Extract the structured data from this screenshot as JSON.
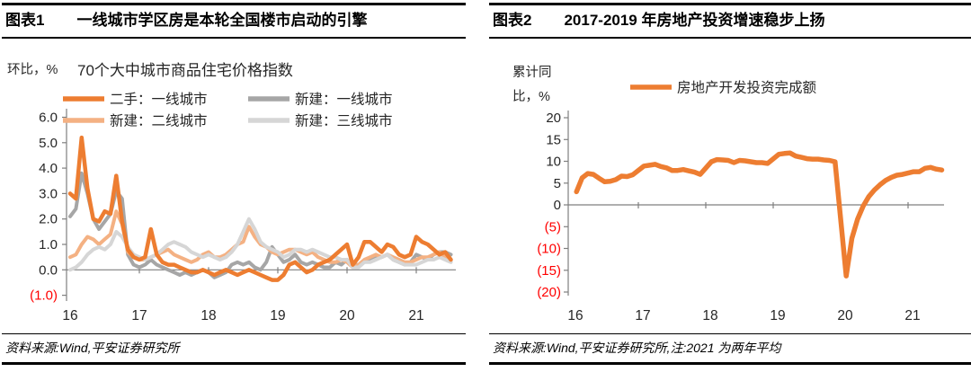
{
  "colors": {
    "accent_orange": "#ED7D31",
    "light_orange": "#F4B183",
    "gray": "#A6A6A6",
    "light_gray": "#D6D6D6",
    "axis": "#7F7F7F",
    "text": "#262626",
    "negative_tick": "#FF0000"
  },
  "panels": [
    {
      "header": {
        "label": "图表1",
        "title": "一线城市学区房是本轮全国楼市启动的引擎"
      },
      "footer": {
        "source": "资料来源:Wind,平安证券研究所"
      },
      "chart_data": {
        "type": "line",
        "title": "70个大中城市商品住宅价格指数",
        "ylabel": "环比，%",
        "xlim": [
          16,
          21.75
        ],
        "ylim": [
          -1.0,
          6.0
        ],
        "x_start": 16,
        "x_step_months": 1,
        "grid": false,
        "legend_position": "top",
        "y_ticks": [
          6.0,
          5.0,
          4.0,
          3.0,
          2.0,
          1.0,
          0.0,
          -1.0
        ],
        "y_tick_labels": [
          "6.0",
          "5.0",
          "4.0",
          "3.0",
          "2.0",
          "1.0",
          "0.0",
          "(1.0)"
        ],
        "x_tick_labels": [
          "16",
          "17",
          "18",
          "19",
          "20",
          "21"
        ],
        "series": [
          {
            "name": "二手：一线城市",
            "color": "#ED7D31",
            "values": [
              3.0,
              2.8,
              5.2,
              3.2,
              2.0,
              1.9,
              2.3,
              2.2,
              3.7,
              1.9,
              0.8,
              0.5,
              0.4,
              0.5,
              1.6,
              0.6,
              0.3,
              0.2,
              0.2,
              0.1,
              0.0,
              -0.1,
              -0.1,
              0.0,
              -0.1,
              -0.2,
              -0.1,
              0.0,
              -0.1,
              -0.2,
              -0.1,
              0.0,
              -0.1,
              -0.2,
              -0.3,
              -0.4,
              -0.4,
              -0.2,
              0.2,
              0.3,
              0.1,
              -0.1,
              0.0,
              0.2,
              0.3,
              0.4,
              0.6,
              0.8,
              1.0,
              0.2,
              0.5,
              1.1,
              1.1,
              0.9,
              0.7,
              1.0,
              0.9,
              0.6,
              0.5,
              0.6,
              1.3,
              1.1,
              1.0,
              0.8,
              0.6,
              0.7,
              0.4
            ]
          },
          {
            "name": "新建：一线城市",
            "color": "#A6A6A6",
            "values": [
              2.1,
              2.4,
              3.8,
              3.0,
              2.0,
              1.6,
              1.9,
              2.2,
              3.1,
              2.8,
              0.6,
              0.2,
              0.1,
              0.2,
              0.4,
              0.2,
              0.1,
              0.0,
              -0.1,
              -0.2,
              -0.1,
              -0.2,
              -0.1,
              0.0,
              -0.1,
              -0.3,
              -0.2,
              -0.1,
              0.2,
              0.3,
              0.2,
              0.3,
              0.1,
              0.0,
              0.3,
              0.9,
              0.6,
              0.3,
              0.4,
              0.6,
              0.3,
              0.2,
              0.3,
              0.2,
              0.1,
              0.1,
              0.3,
              0.2,
              0.4,
              0.2,
              0.2,
              0.3,
              0.4,
              0.5,
              0.5,
              0.6,
              0.4,
              0.3,
              0.2,
              0.3,
              0.6,
              0.5,
              0.4,
              0.6,
              0.7,
              0.7,
              0.6
            ]
          },
          {
            "name": "新建：二线城市",
            "color": "#F4B183",
            "values": [
              0.5,
              0.6,
              1.0,
              1.3,
              1.2,
              1.0,
              1.2,
              1.4,
              2.3,
              1.8,
              0.7,
              0.5,
              0.4,
              0.4,
              0.5,
              0.6,
              0.7,
              0.8,
              0.6,
              0.5,
              0.4,
              0.3,
              0.4,
              0.6,
              0.7,
              0.5,
              0.5,
              0.6,
              0.8,
              1.0,
              1.1,
              1.7,
              1.3,
              1.0,
              0.9,
              0.7,
              0.6,
              0.7,
              0.8,
              0.8,
              0.7,
              0.6,
              0.7,
              0.5,
              0.4,
              0.3,
              0.3,
              0.4,
              0.3,
              0.1,
              0.2,
              0.4,
              0.5,
              0.6,
              0.5,
              0.6,
              0.5,
              0.4,
              0.3,
              0.3,
              0.4,
              0.5,
              0.5,
              0.6,
              0.7,
              0.5,
              0.4
            ]
          },
          {
            "name": "新建：三线城市",
            "color": "#D6D6D6",
            "values": [
              0.0,
              0.1,
              0.3,
              0.6,
              0.8,
              0.9,
              0.8,
              1.0,
              1.5,
              1.3,
              0.9,
              0.6,
              0.5,
              0.4,
              0.5,
              0.6,
              0.8,
              1.0,
              1.1,
              1.0,
              0.9,
              0.7,
              0.6,
              0.5,
              0.6,
              0.5,
              0.4,
              0.5,
              0.7,
              1.0,
              1.5,
              2.0,
              1.6,
              1.1,
              0.9,
              0.8,
              0.7,
              0.5,
              0.6,
              0.8,
              0.8,
              0.7,
              0.8,
              0.7,
              0.6,
              0.5,
              0.5,
              0.4,
              0.4,
              0.1,
              0.1,
              0.3,
              0.3,
              0.4,
              0.5,
              0.6,
              0.4,
              0.3,
              0.2,
              0.2,
              0.2,
              0.3,
              0.4,
              0.4,
              0.5,
              0.4,
              0.3
            ]
          }
        ]
      }
    },
    {
      "header": {
        "label": "图表2",
        "title": "2017-2019 年房地产投资增速稳步上扬"
      },
      "footer": {
        "source": "资料来源:Wind,平安证券研究所,注:2021 为两年平均"
      },
      "chart_data": {
        "type": "line",
        "ylabel_lines": [
          "累计同",
          "比，%"
        ],
        "xlim": [
          16,
          21.75
        ],
        "ylim": [
          -20,
          20
        ],
        "grid": false,
        "legend_position": "top",
        "y_ticks": [
          20,
          15,
          10,
          5,
          0,
          -5,
          -10,
          -15,
          -20
        ],
        "y_tick_labels": [
          "20",
          "15",
          "10",
          "5",
          "0",
          "(5)",
          "(10)",
          "(15)",
          "(20)"
        ],
        "x_tick_labels": [
          "16",
          "17",
          "18",
          "19",
          "20",
          "21"
        ],
        "series": [
          {
            "name": "房地产开发投资完成额",
            "color": "#ED7D31",
            "x": [
              16.083,
              16.167,
              16.25,
              16.333,
              16.417,
              16.5,
              16.583,
              16.667,
              16.75,
              16.833,
              16.917,
              17.083,
              17.167,
              17.25,
              17.333,
              17.417,
              17.5,
              17.583,
              17.667,
              17.75,
              17.833,
              17.917,
              18.083,
              18.167,
              18.25,
              18.333,
              18.417,
              18.5,
              18.583,
              18.667,
              18.75,
              18.833,
              18.917,
              19.083,
              19.167,
              19.25,
              19.333,
              19.417,
              19.5,
              19.583,
              19.667,
              19.75,
              19.833,
              19.917,
              20.083,
              20.167,
              20.25,
              20.333,
              20.417,
              20.5,
              20.583,
              20.667,
              20.75,
              20.833,
              20.917,
              21.083,
              21.167,
              21.25,
              21.333,
              21.417,
              21.5
            ],
            "values": [
              3.0,
              6.2,
              7.2,
              7.0,
              6.1,
              5.3,
              5.4,
              5.8,
              6.6,
              6.5,
              6.9,
              8.9,
              9.1,
              9.3,
              8.8,
              8.5,
              7.9,
              7.9,
              8.1,
              7.8,
              7.5,
              7.0,
              9.9,
              10.4,
              10.3,
              10.2,
              9.7,
              10.2,
              10.1,
              9.9,
              9.7,
              9.7,
              9.5,
              11.6,
              11.8,
              11.9,
              11.2,
              10.9,
              10.6,
              10.5,
              10.5,
              10.3,
              10.2,
              9.9,
              -16.3,
              -7.7,
              -3.3,
              -0.3,
              1.9,
              3.4,
              4.6,
              5.6,
              6.3,
              6.8,
              7.0,
              7.6,
              7.6,
              8.4,
              8.6,
              8.2,
              8.0
            ]
          }
        ]
      }
    }
  ]
}
